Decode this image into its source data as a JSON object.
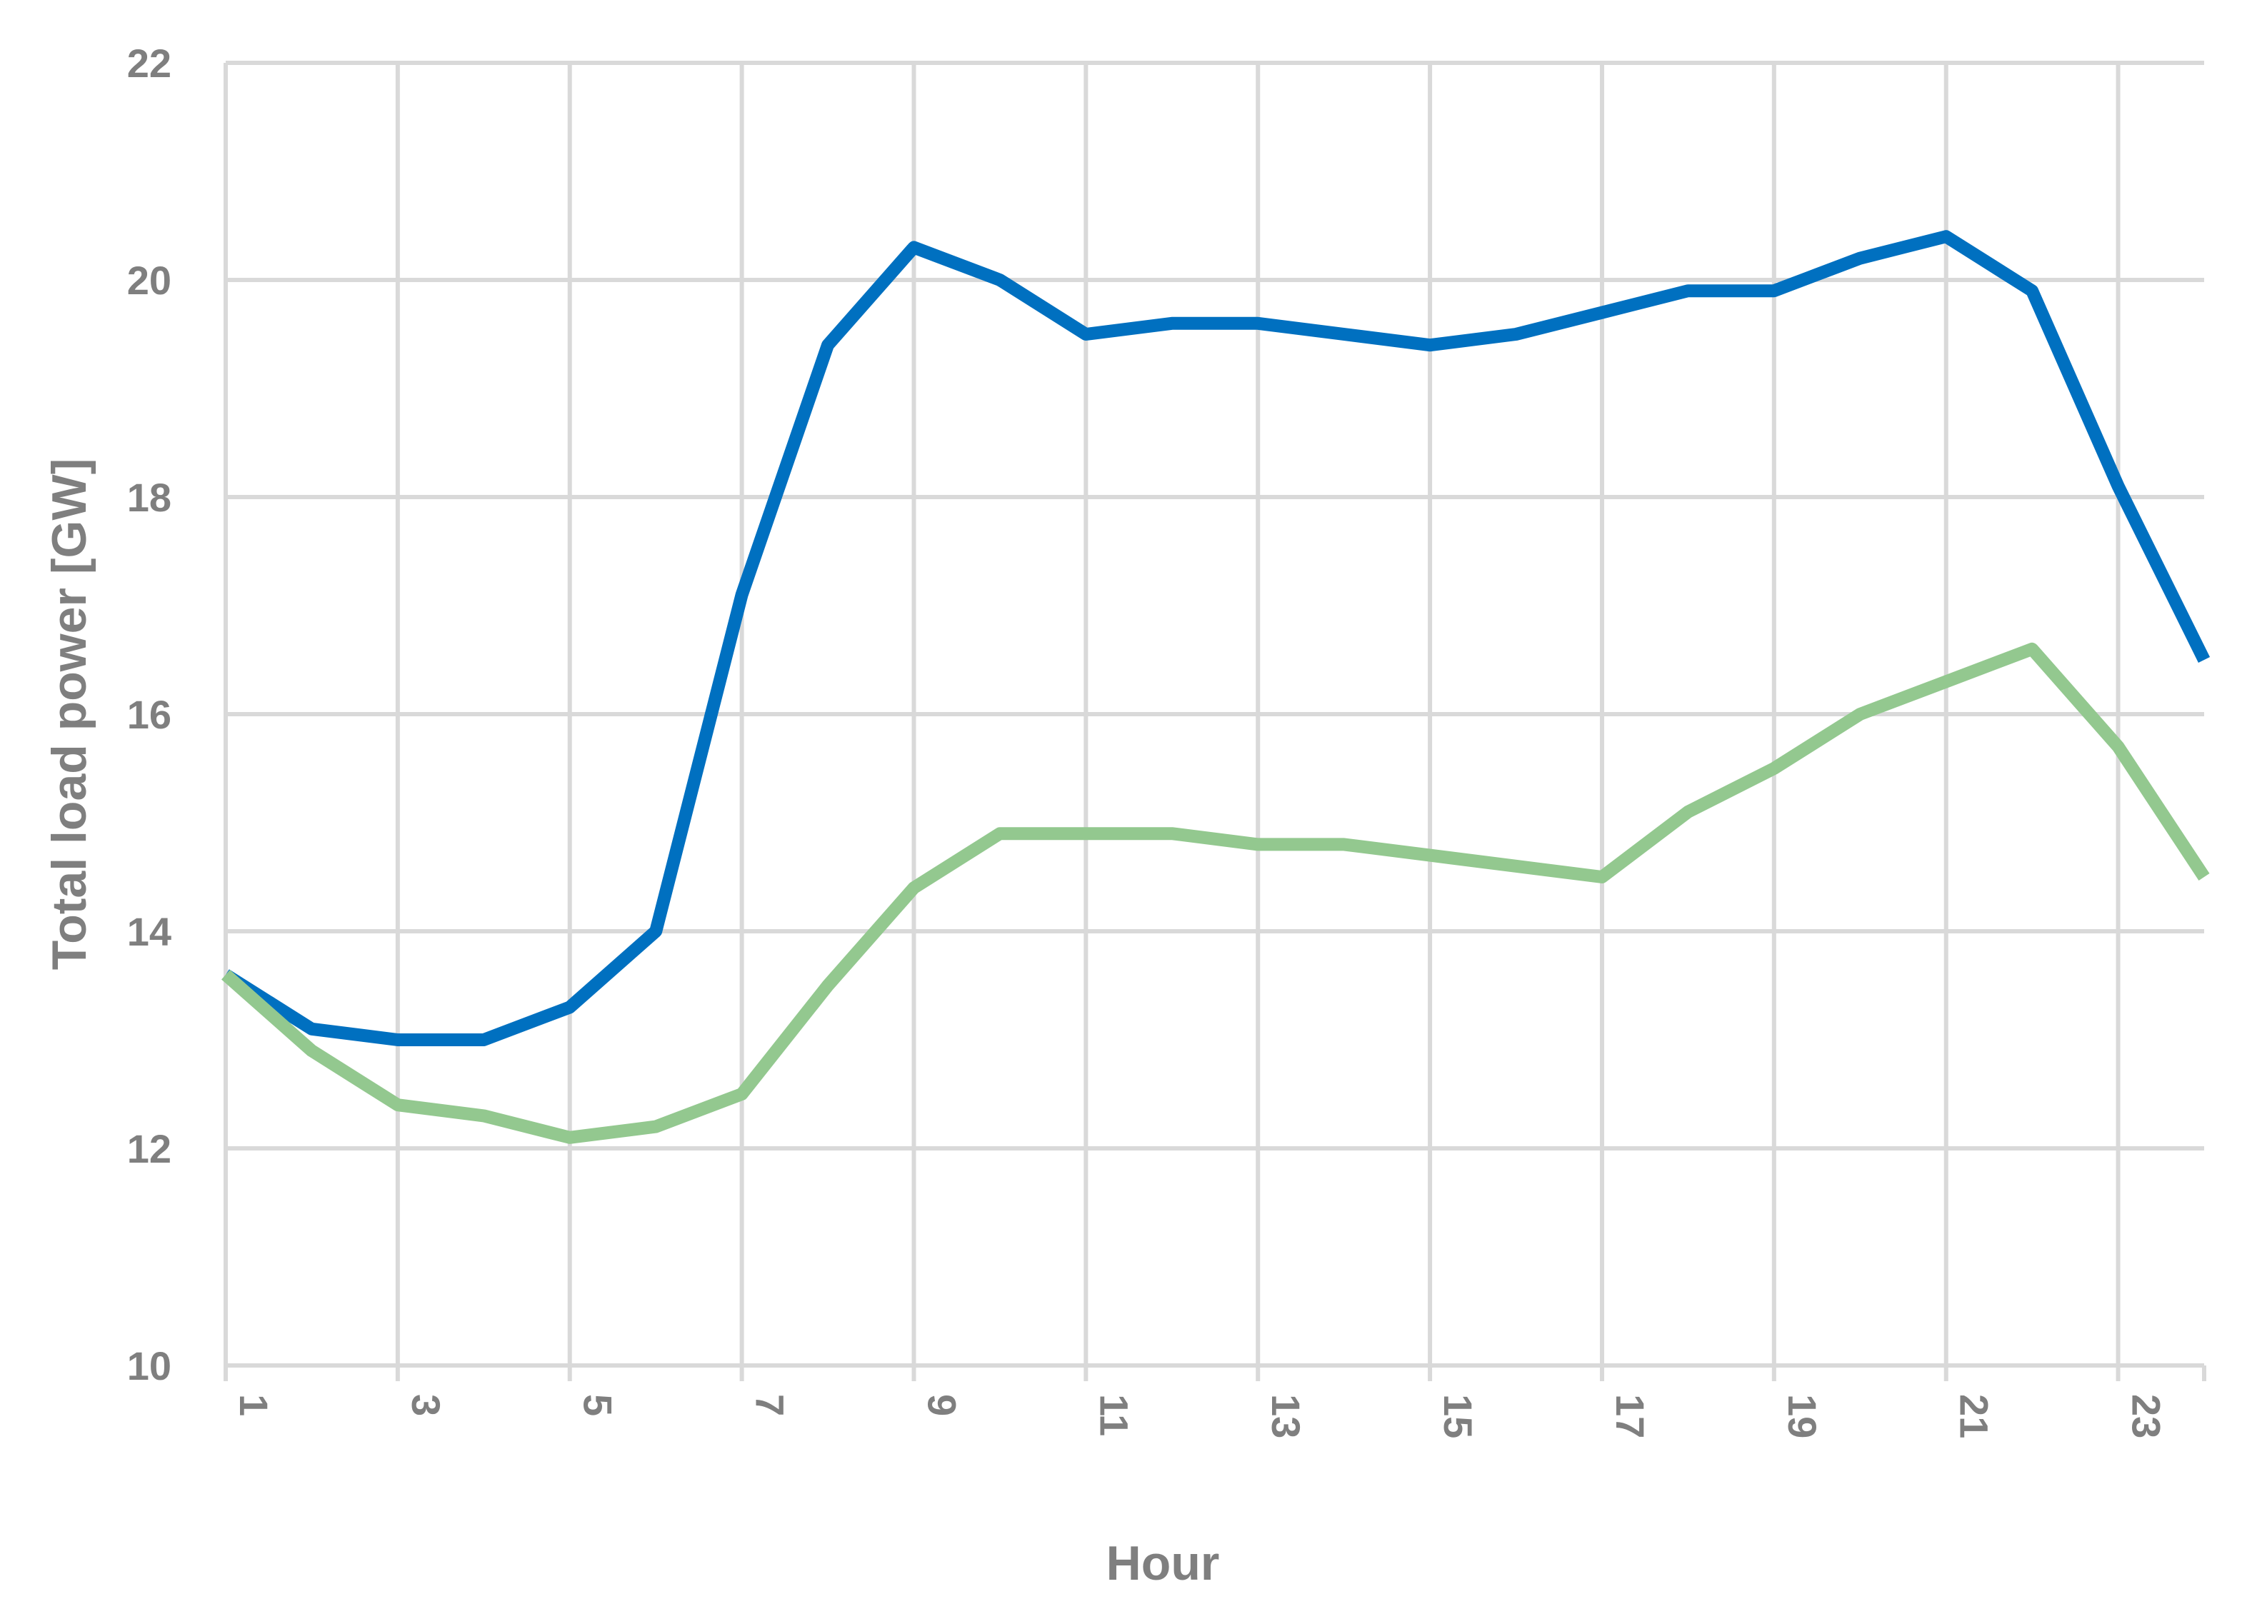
{
  "chart_data": {
    "type": "line",
    "xlabel": "Hour",
    "ylabel": "Total load power [GW]",
    "x": [
      1,
      2,
      3,
      4,
      5,
      6,
      7,
      8,
      9,
      10,
      11,
      12,
      13,
      14,
      15,
      16,
      17,
      18,
      19,
      20,
      21,
      22,
      23,
      24
    ],
    "xticks": [
      1,
      3,
      5,
      7,
      9,
      11,
      13,
      15,
      17,
      19,
      21,
      23
    ],
    "xlim": [
      1,
      24
    ],
    "ylim": [
      10,
      22
    ],
    "yticks": [
      10,
      12,
      14,
      16,
      18,
      20,
      22
    ],
    "grid": true,
    "series": [
      {
        "color": "#0070c0",
        "values": [
          13.6,
          13.1,
          13.0,
          13.0,
          13.3,
          14.0,
          17.1,
          19.4,
          20.3,
          20.0,
          19.5,
          19.6,
          19.6,
          19.5,
          19.4,
          19.5,
          19.7,
          19.9,
          19.9,
          20.2,
          20.4,
          19.9,
          18.1,
          16.5
        ]
      },
      {
        "color": "#93c88f",
        "values": [
          13.6,
          12.9,
          12.4,
          12.3,
          12.1,
          12.2,
          12.5,
          13.5,
          14.4,
          14.9,
          14.9,
          14.9,
          14.8,
          14.8,
          14.7,
          14.6,
          14.5,
          15.1,
          15.5,
          16.0,
          16.3,
          16.6,
          15.7,
          14.5
        ]
      }
    ]
  }
}
